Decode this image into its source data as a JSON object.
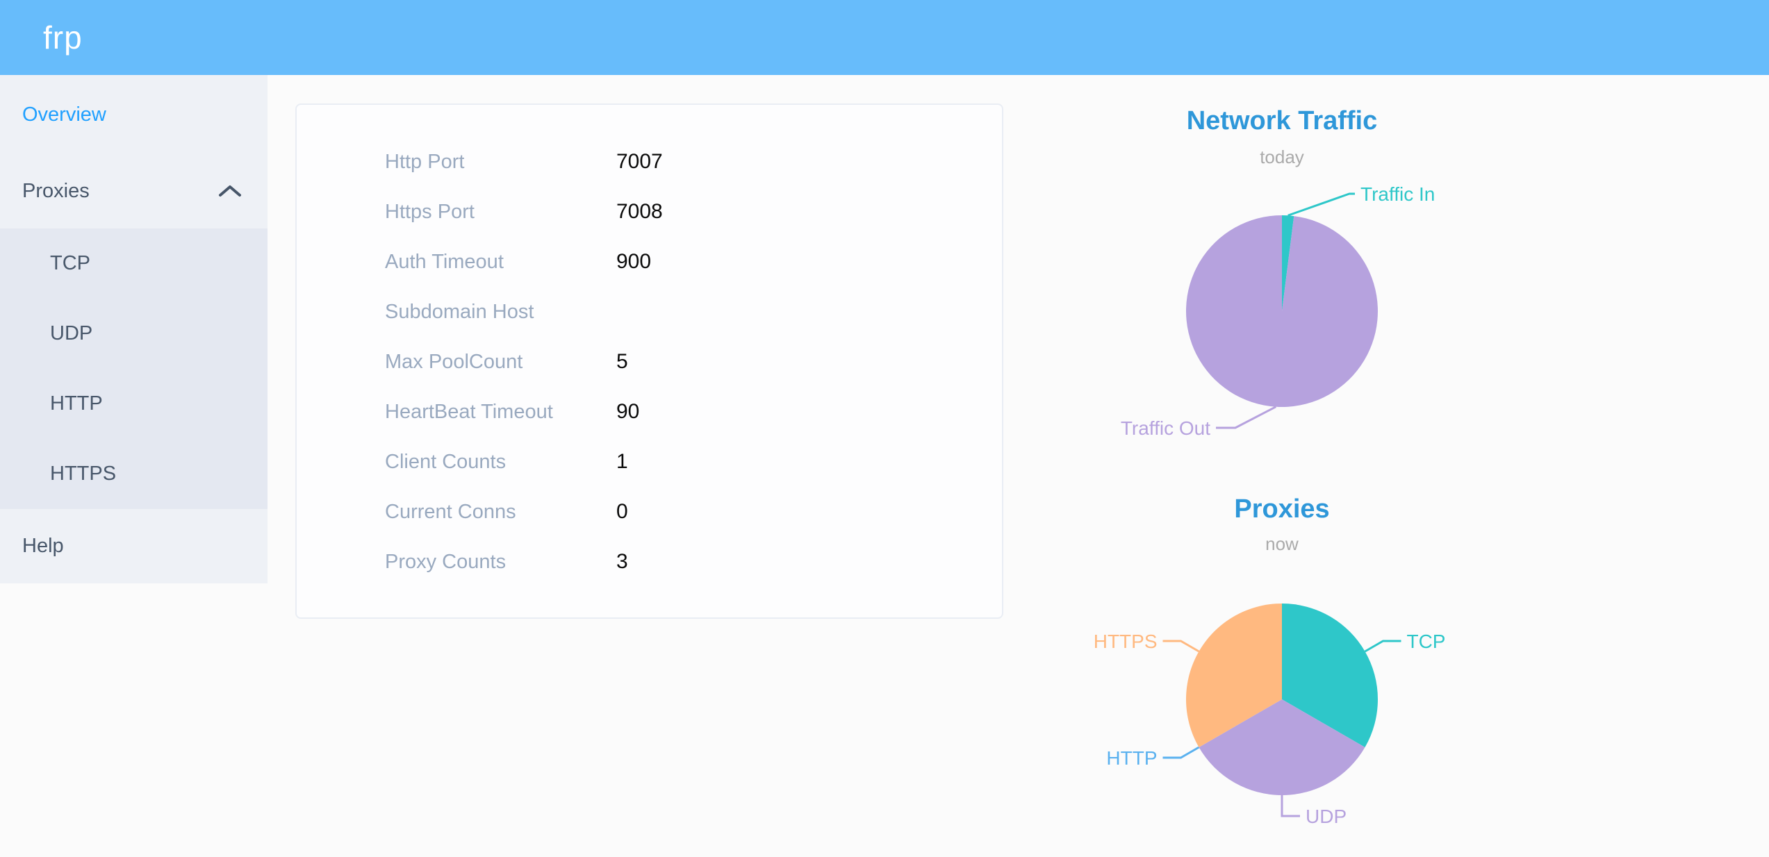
{
  "header": {
    "logo": "frp"
  },
  "sidebar": {
    "overview_label": "Overview",
    "proxies_label": "Proxies",
    "help_label": "Help",
    "proxies_submenu": [
      "TCP",
      "UDP",
      "HTTP",
      "HTTPS"
    ]
  },
  "server_info": {
    "rows": [
      {
        "label": "Http Port",
        "value": "7007"
      },
      {
        "label": "Https Port",
        "value": "7008"
      },
      {
        "label": "Auth Timeout",
        "value": "900"
      },
      {
        "label": "Subdomain Host",
        "value": ""
      },
      {
        "label": "Max PoolCount",
        "value": "5"
      },
      {
        "label": "HeartBeat Timeout",
        "value": "90"
      },
      {
        "label": "Client Counts",
        "value": "1"
      },
      {
        "label": "Current Conns",
        "value": "0"
      },
      {
        "label": "Proxy Counts",
        "value": "3"
      }
    ]
  },
  "chart_data": [
    {
      "type": "pie",
      "title": "Network Traffic",
      "subtitle": "today",
      "legend": "none",
      "label_position": "outside",
      "series": [
        {
          "name": "Traffic In",
          "value": 2,
          "color": "#2ec7c9"
        },
        {
          "name": "Traffic Out",
          "value": 98,
          "color": "#b6a2de"
        }
      ],
      "note": "values are percentages estimated from slice angles (~2% in, ~98% out)"
    },
    {
      "type": "pie",
      "title": "Proxies",
      "subtitle": "now",
      "legend": "none",
      "label_position": "outside",
      "series": [
        {
          "name": "TCP",
          "value": 1,
          "color": "#2ec7c9"
        },
        {
          "name": "UDP",
          "value": 1,
          "color": "#b6a2de"
        },
        {
          "name": "HTTP",
          "value": 0,
          "color": "#5ab1ef"
        },
        {
          "name": "HTTPS",
          "value": 1,
          "color": "#ffb980"
        }
      ]
    }
  ],
  "colors": {
    "header_bg": "#67bcfb",
    "sidebar_bg": "#eef1f6",
    "submenu_bg": "#e4e8f1",
    "menu_text": "#48576a",
    "active_menu_text": "#20a0ff",
    "chart_title": "#2e97d9",
    "chart_subtitle": "#aaaaaa",
    "table_label": "#99a9bf"
  }
}
